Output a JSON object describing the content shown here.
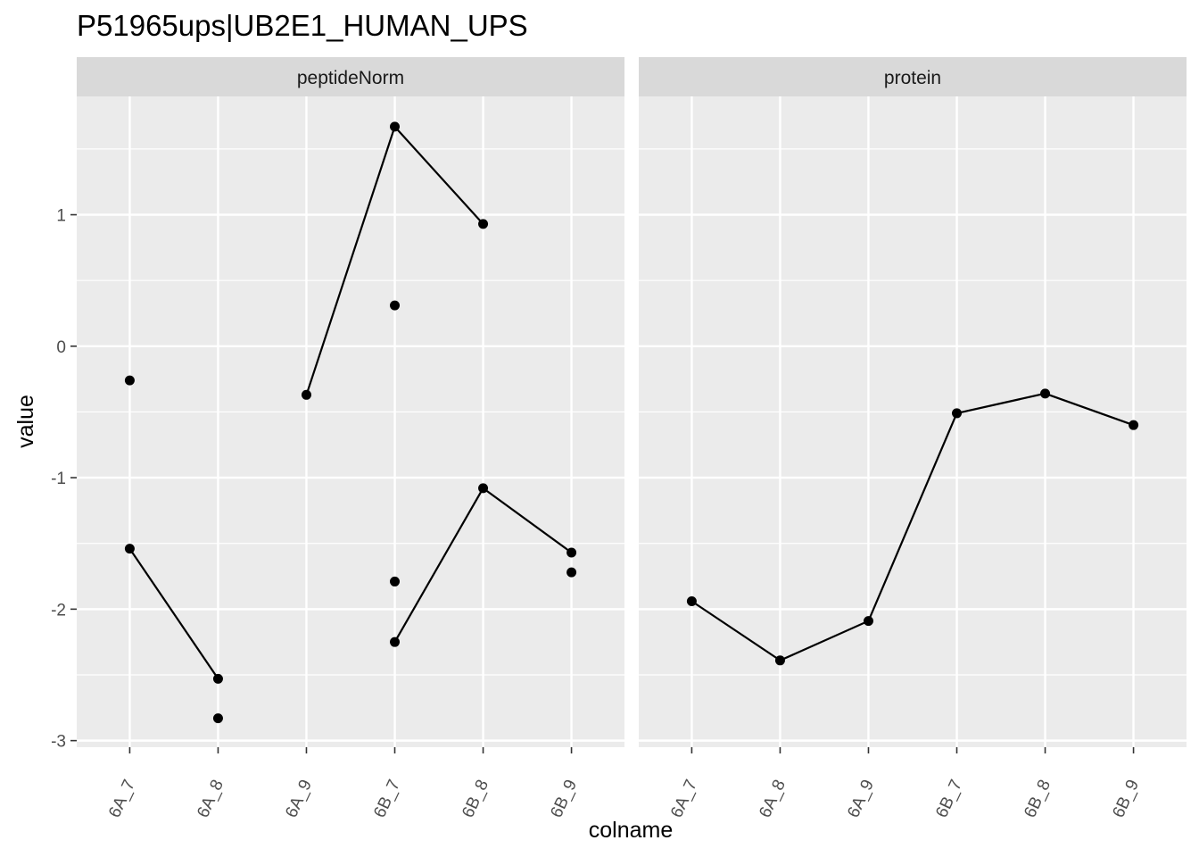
{
  "chart_data": {
    "type": "line",
    "title": "P51965ups|UB2E1_HUMAN_UPS",
    "xlabel": "colname",
    "ylabel": "value",
    "ylim": [
      -3.05,
      1.9
    ],
    "yticks": [
      -3,
      -2,
      -1,
      0,
      1
    ],
    "categories": [
      "6A_7",
      "6A_8",
      "6A_9",
      "6B_7",
      "6B_8",
      "6B_9"
    ],
    "grid": true,
    "point_color": "#000000",
    "line_color": "#000000",
    "panel_background": "#ebebeb",
    "strip_background": "#d9d9d9",
    "panels": [
      {
        "name": "peptideNorm",
        "lines": [
          {
            "points": [
              [
                "6A_7",
                -1.54
              ],
              [
                "6A_8",
                -2.53
              ]
            ]
          },
          {
            "points": [
              [
                "6A_9",
                -0.37
              ],
              [
                "6B_7",
                1.67
              ],
              [
                "6B_8",
                0.93
              ]
            ]
          },
          {
            "points": [
              [
                "6B_7",
                -2.25
              ],
              [
                "6B_8",
                -1.08
              ],
              [
                "6B_9",
                -1.57
              ]
            ]
          }
        ],
        "points": [
          [
            "6A_7",
            -0.26
          ],
          [
            "6A_8",
            -2.83
          ],
          [
            "6B_7",
            0.31
          ],
          [
            "6B_7",
            -1.79
          ],
          [
            "6B_9",
            -1.72
          ]
        ]
      },
      {
        "name": "protein",
        "lines": [
          {
            "points": [
              [
                "6A_7",
                -1.94
              ],
              [
                "6A_8",
                -2.39
              ],
              [
                "6A_9",
                -2.09
              ],
              [
                "6B_7",
                -0.51
              ],
              [
                "6B_8",
                -0.36
              ],
              [
                "6B_9",
                -0.6
              ]
            ]
          }
        ],
        "points": []
      }
    ]
  }
}
